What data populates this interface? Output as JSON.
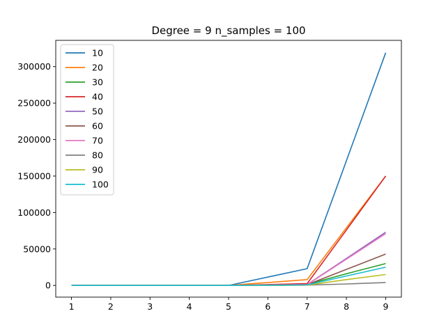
{
  "chart_data": {
    "type": "line",
    "title": "Degree = 9 n_samples = 100",
    "xlabel": "",
    "ylabel": "",
    "x": [
      1,
      2,
      3,
      4,
      5,
      6,
      7,
      8,
      9
    ],
    "xticks": [
      "1",
      "2",
      "3",
      "4",
      "5",
      "6",
      "7",
      "8",
      "9"
    ],
    "yticks": [
      0,
      50000,
      100000,
      150000,
      200000,
      250000,
      300000
    ],
    "ytick_labels": [
      "0",
      "50000",
      "100000",
      "150000",
      "200000",
      "250000",
      "300000"
    ],
    "xlim": [
      0.6,
      9.4
    ],
    "ylim": [
      -16000,
      336000
    ],
    "grid": false,
    "legend_position": "top-left",
    "series": [
      {
        "name": "10",
        "color": "#1f77b4",
        "values": [
          0,
          0,
          0,
          0,
          0,
          11500,
          23000,
          171000,
          319000
        ]
      },
      {
        "name": "20",
        "color": "#ff7f0e",
        "values": [
          0,
          0,
          0,
          0,
          0,
          4000,
          8000,
          79000,
          150000
        ]
      },
      {
        "name": "30",
        "color": "#2ca02c",
        "values": [
          0,
          0,
          0,
          0,
          0,
          700,
          1500,
          16000,
          30000
        ]
      },
      {
        "name": "40",
        "color": "#d62728",
        "values": [
          0,
          0,
          0,
          0,
          0,
          1200,
          2500,
          76000,
          150000
        ]
      },
      {
        "name": "50",
        "color": "#9467bd",
        "values": [
          0,
          0,
          0,
          0,
          0,
          600,
          1200,
          37000,
          73000
        ]
      },
      {
        "name": "60",
        "color": "#8c564b",
        "values": [
          0,
          0,
          0,
          0,
          0,
          500,
          1000,
          22000,
          43000
        ]
      },
      {
        "name": "70",
        "color": "#e377c2",
        "values": [
          0,
          0,
          0,
          0,
          0,
          500,
          1000,
          36000,
          71000
        ]
      },
      {
        "name": "80",
        "color": "#7f7f7f",
        "values": [
          0,
          0,
          0,
          0,
          0,
          200,
          500,
          2000,
          4000
        ]
      },
      {
        "name": "90",
        "color": "#bcbd22",
        "values": [
          0,
          0,
          0,
          0,
          0,
          200,
          400,
          8000,
          15000
        ]
      },
      {
        "name": "100",
        "color": "#17becf",
        "values": [
          0,
          0,
          0,
          0,
          0,
          300,
          700,
          13000,
          25000
        ]
      }
    ]
  }
}
